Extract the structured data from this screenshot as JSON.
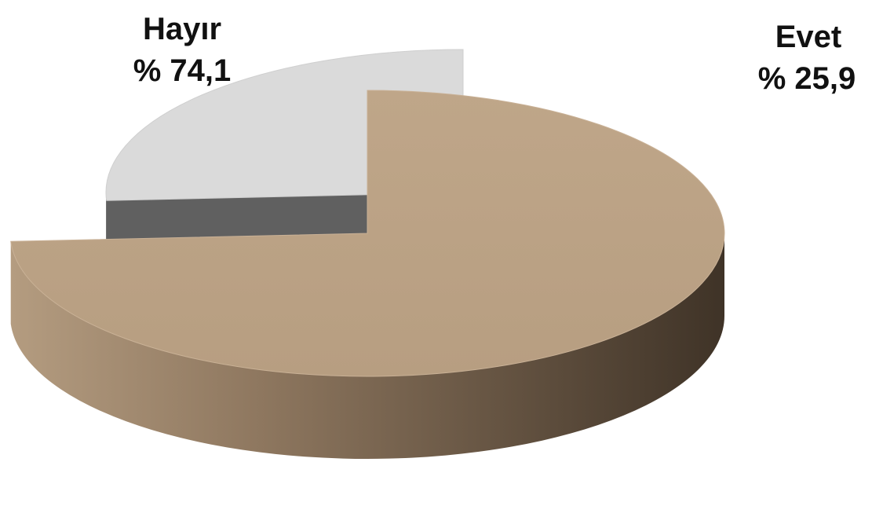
{
  "chart_data": {
    "type": "pie",
    "style": "3d-exploded",
    "title": "",
    "slices": [
      {
        "label": "Hayır",
        "value": 74.1,
        "percent_text": "% 74,1",
        "color": "#BAA184"
      },
      {
        "label": "Evet",
        "value": 25.9,
        "percent_text": "% 25,9",
        "color": "#DADADA",
        "exploded": true
      }
    ],
    "legend": "none",
    "data_labels": "outside-top"
  },
  "colors": {
    "background": "#FFFFFF",
    "hayir_side_light": "#A58D72",
    "hayir_side_dark": "#423629",
    "evet_side": "#5A5A5A",
    "label_text": "#111111"
  }
}
